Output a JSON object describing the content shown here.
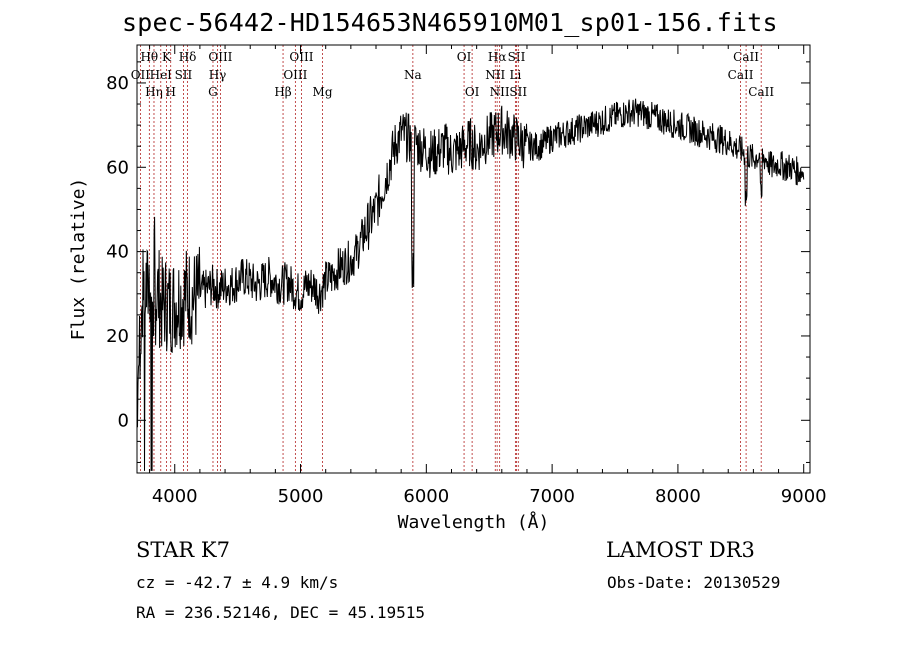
{
  "title": "spec-56442-HD154653N465910M01_sp01-156.fits",
  "chart_data": {
    "type": "line",
    "title": "spec-56442-HD154653N465910M01_sp01-156.fits",
    "xlabel": "Wavelength (Å)",
    "ylabel": "Flux (relative)",
    "xlim": [
      3700,
      9050
    ],
    "ylim": [
      -12.5,
      89
    ],
    "xticks": [
      4000,
      5000,
      6000,
      7000,
      8000,
      9000
    ],
    "yticks": [
      0,
      20,
      40,
      60,
      80
    ],
    "series": [
      {
        "name": "flux",
        "x": [
          3700,
          3720,
          3740,
          3760,
          3780,
          3800,
          3820,
          3840,
          3860,
          3880,
          3900,
          3930,
          3960,
          4000,
          4050,
          4100,
          4150,
          4200,
          4250,
          4300,
          4350,
          4400,
          4450,
          4500,
          4550,
          4600,
          4650,
          4700,
          4750,
          4800,
          4850,
          4900,
          4950,
          5000,
          5050,
          5100,
          5150,
          5200,
          5250,
          5300,
          5350,
          5400,
          5450,
          5500,
          5550,
          5600,
          5650,
          5700,
          5750,
          5800,
          5850,
          5900,
          5950,
          6000,
          6050,
          6100,
          6150,
          6200,
          6250,
          6300,
          6350,
          6400,
          6450,
          6500,
          6550,
          6600,
          6650,
          6700,
          6750,
          6800,
          6900,
          7000,
          7100,
          7200,
          7300,
          7400,
          7500,
          7600,
          7700,
          7800,
          7900,
          8000,
          8100,
          8200,
          8300,
          8400,
          8500,
          8550,
          8600,
          8650,
          8700,
          8750,
          8800,
          8850,
          8900,
          8950,
          9000
        ],
        "y": [
          5,
          18,
          28,
          32,
          30,
          34,
          30,
          28,
          31,
          29,
          27,
          28,
          27,
          28,
          29,
          30,
          29,
          30,
          31,
          32,
          31,
          32,
          32,
          33,
          34,
          33,
          32,
          33,
          34,
          33,
          32,
          33,
          31,
          30,
          32,
          32,
          30,
          33,
          34,
          36,
          37,
          38,
          40,
          44,
          47,
          50,
          55,
          60,
          65,
          68,
          67,
          66,
          65,
          64,
          63,
          64,
          65,
          63,
          64,
          65,
          66,
          64,
          66,
          67,
          68,
          69,
          68,
          67,
          66,
          65,
          65,
          67,
          68,
          69,
          70,
          71,
          72,
          73,
          73,
          72,
          71,
          70,
          69,
          68,
          67,
          66,
          64,
          63,
          62,
          63,
          62,
          60,
          61,
          60,
          60,
          59,
          59
        ]
      }
    ],
    "spectral_lines": [
      {
        "label": "Hθ",
        "x": 3798,
        "row": 1
      },
      {
        "label": "OII",
        "x": 3727,
        "row": 2
      },
      {
        "label": "Hη",
        "x": 3835,
        "row": 3
      },
      {
        "label": "HeI",
        "x": 3889,
        "row": 2
      },
      {
        "label": "K",
        "x": 3934,
        "row": 1
      },
      {
        "label": "SII",
        "x": 4069,
        "row": 2
      },
      {
        "label": "H",
        "x": 3968,
        "row": 3
      },
      {
        "label": "Hδ",
        "x": 4102,
        "row": 1
      },
      {
        "label": "OIII",
        "x": 4363,
        "row": 1
      },
      {
        "label": "Hγ",
        "x": 4340,
        "row": 2
      },
      {
        "label": "G",
        "x": 4304,
        "row": 3
      },
      {
        "label": "OIII",
        "x": 5007,
        "row": 1
      },
      {
        "label": "OIII",
        "x": 4959,
        "row": 2
      },
      {
        "label": "Hβ",
        "x": 4861,
        "row": 3
      },
      {
        "label": "Mg",
        "x": 5175,
        "row": 3
      },
      {
        "label": "Na",
        "x": 5893,
        "row": 2
      },
      {
        "label": "OI",
        "x": 6300,
        "row": 1
      },
      {
        "label": "OI",
        "x": 6364,
        "row": 3
      },
      {
        "label": "Hα",
        "x": 6563,
        "row": 1
      },
      {
        "label": "NII",
        "x": 6548,
        "row": 2
      },
      {
        "label": "NII",
        "x": 6583,
        "row": 3
      },
      {
        "label": "SII",
        "x": 6717,
        "row": 1
      },
      {
        "label": "Li",
        "x": 6708,
        "row": 2
      },
      {
        "label": "SII",
        "x": 6731,
        "row": 3
      },
      {
        "label": "CaII",
        "x": 8542,
        "row": 1
      },
      {
        "label": "CaII",
        "x": 8498,
        "row": 2
      },
      {
        "label": "CaII",
        "x": 8662,
        "row": 3
      }
    ],
    "colors": {
      "axes": "#000000",
      "spectrum": "#000000",
      "lines": "#b22222"
    }
  },
  "info": {
    "class_line": "STAR    K7",
    "survey": "LAMOST DR3",
    "cz": "cz = -42.7 ± 4.9 km/s",
    "obs_date": "Obs-Date: 20130529",
    "radec": "RA = 236.52146, DEC =  45.19515"
  }
}
